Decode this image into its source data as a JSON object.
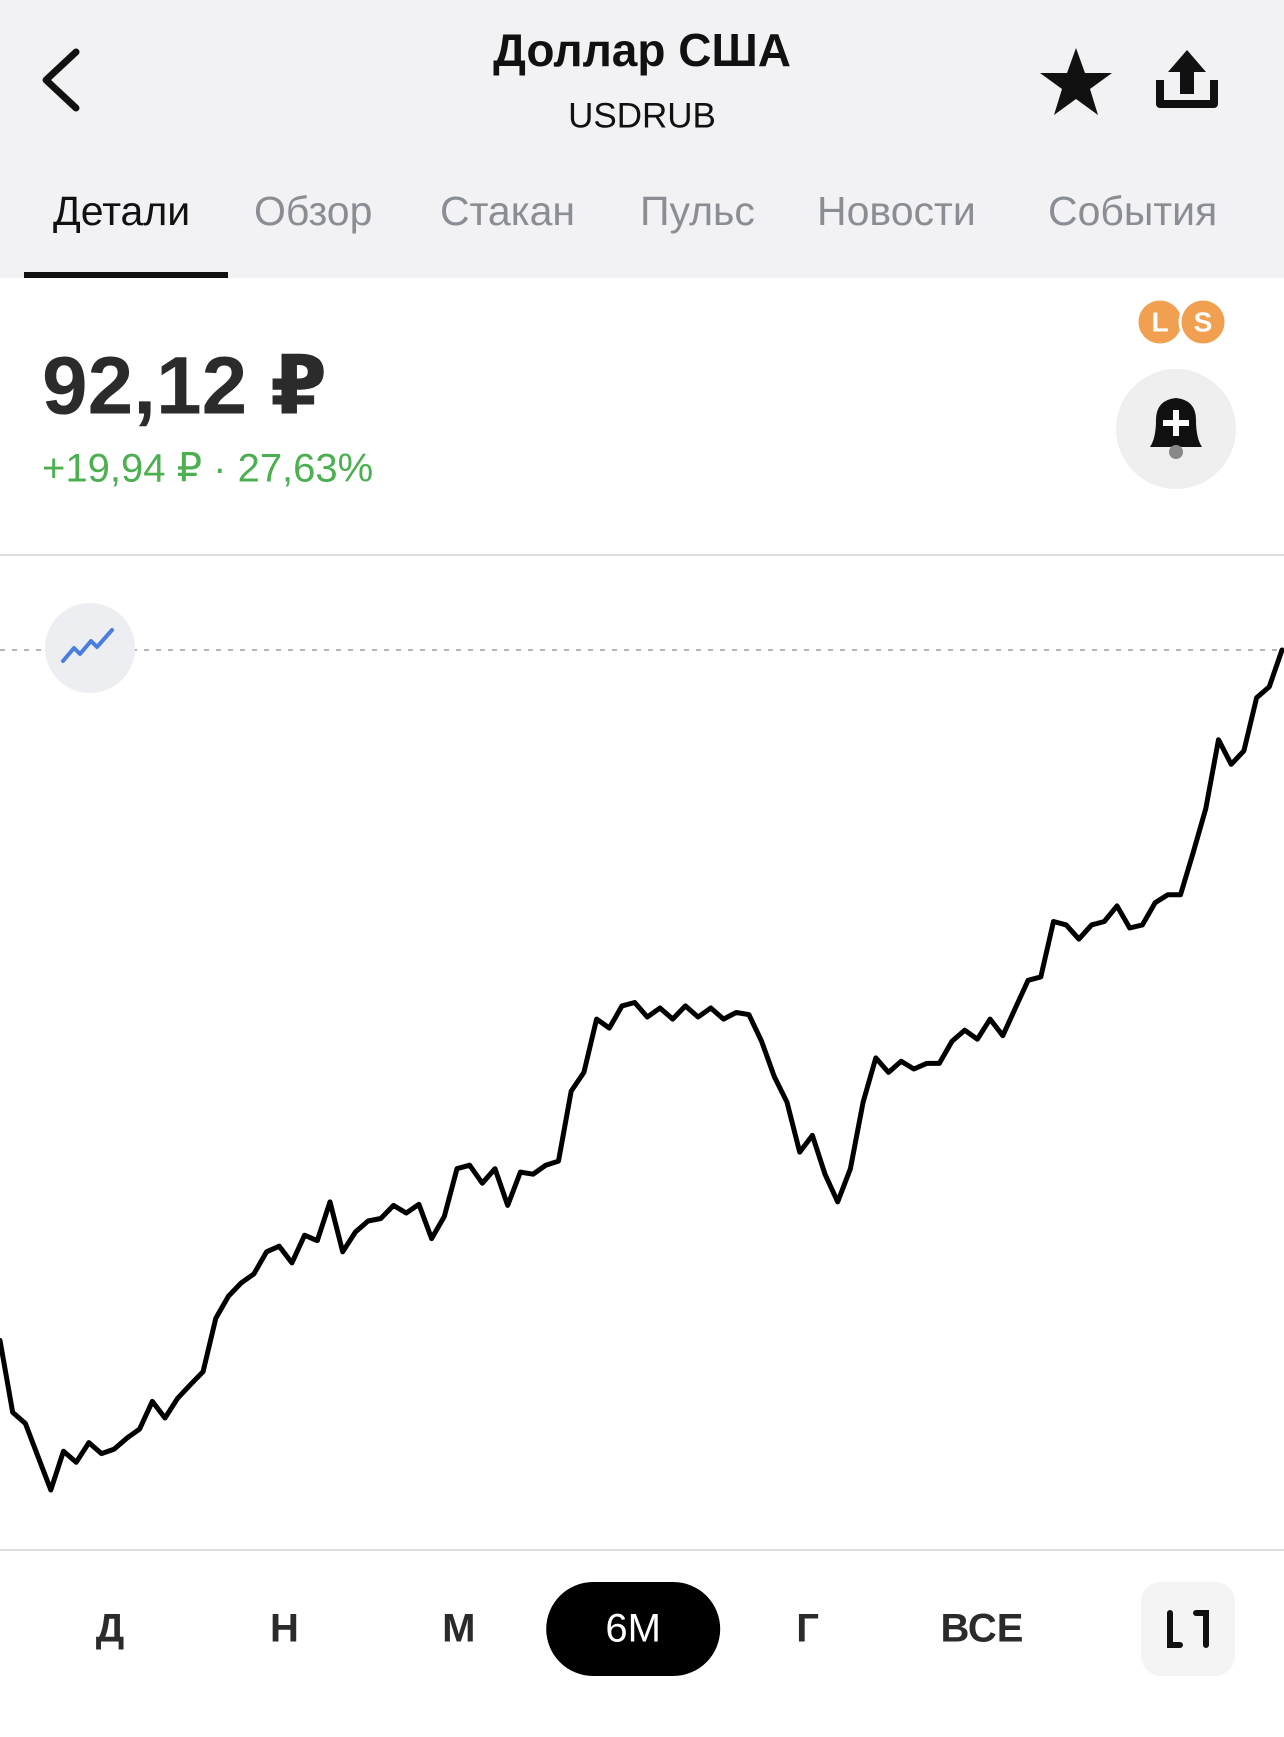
{
  "header": {
    "title": "Доллар США",
    "ticker": "USDRUB"
  },
  "tabs": [
    "Детали",
    "Обзор",
    "Стакан",
    "Пульс",
    "Новости",
    "События"
  ],
  "active_tab": 0,
  "quote": {
    "price": "92,12 ₽",
    "change": "+19,94 ₽ · 27,63%"
  },
  "badges": [
    "L",
    "S"
  ],
  "chart_data": {
    "type": "line",
    "color": "#000000",
    "values": [
      72.18,
      70.1,
      69.78,
      68.82,
      67.86,
      68.98,
      68.66,
      69.23,
      68.91,
      69.04,
      69.36,
      69.62,
      70.42,
      69.94,
      70.51,
      70.9,
      71.28,
      72.82,
      73.46,
      73.84,
      74.1,
      74.74,
      74.9,
      74.42,
      75.22,
      75.06,
      76.18,
      74.74,
      75.31,
      75.63,
      75.7,
      76.08,
      75.86,
      76.11,
      75.12,
      75.76,
      77.14,
      77.24,
      76.72,
      77.14,
      76.08,
      77.04,
      76.98,
      77.24,
      77.36,
      79.38,
      79.92,
      81.46,
      81.2,
      81.84,
      81.94,
      81.52,
      81.78,
      81.46,
      81.84,
      81.52,
      81.78,
      81.46,
      81.65,
      81.59,
      80.82,
      79.8,
      79.06,
      77.62,
      78.1,
      76.98,
      76.18,
      77.14,
      79.06,
      80.34,
      79.92,
      80.24,
      80.02,
      80.18,
      80.18,
      80.82,
      81.14,
      80.88,
      81.46,
      80.98,
      81.78,
      82.58,
      82.68,
      84.28,
      84.18,
      83.77,
      84.18,
      84.28,
      84.73,
      84.09,
      84.18,
      84.82,
      85.05,
      85.05,
      86.26,
      87.54,
      89.53,
      88.82,
      89.21,
      90.74,
      91.06,
      92.12
    ]
  },
  "periods": [
    "Д",
    "Н",
    "М",
    "6М",
    "Г",
    "ВСЕ"
  ],
  "active_period": 3
}
